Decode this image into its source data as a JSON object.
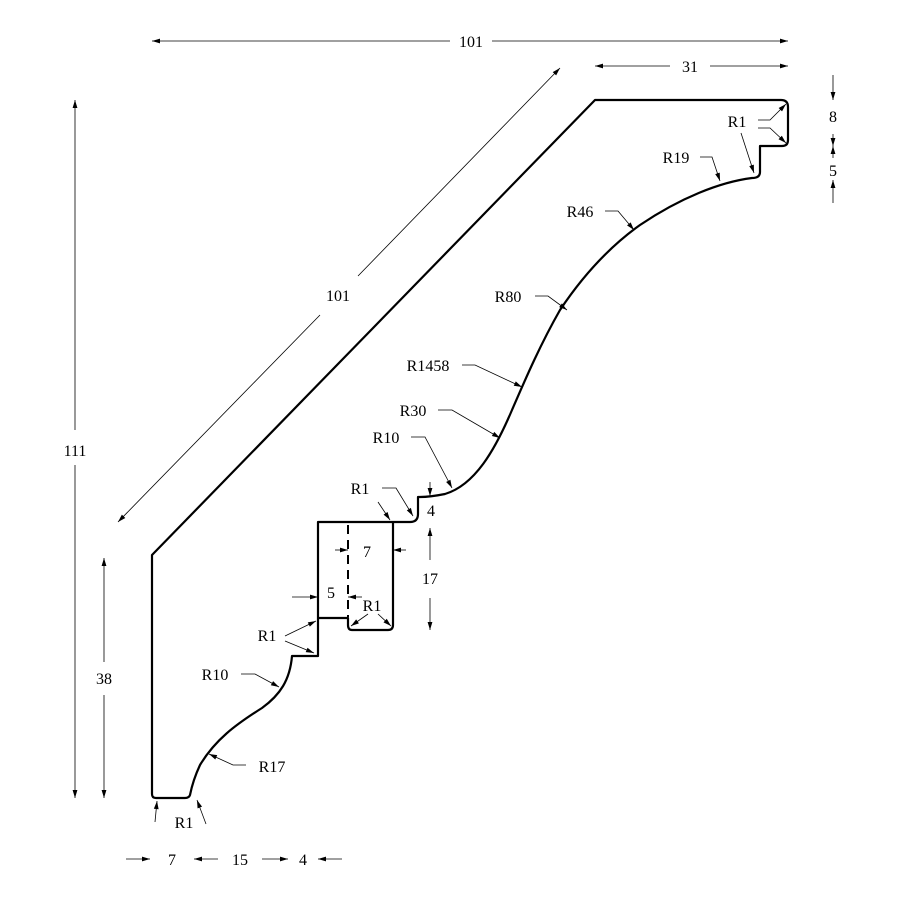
{
  "dimensions": {
    "overall_width": "101",
    "top_flat": "31",
    "top_step_height": "8",
    "top_step_depth": "5",
    "overall_height": "111",
    "wall_height": "38",
    "slope_length": "101",
    "step_height": "4",
    "slot_height": "17",
    "slot_width": "7",
    "slot_offset": "5",
    "bottom_flat": "7",
    "bottom_curve": "15",
    "bottom_step": "4"
  },
  "radii": {
    "top_corner": "R1",
    "r19": "R19",
    "r46": "R46",
    "r80": "R80",
    "r1458": "R1458",
    "r30": "R30",
    "r10_upper": "R10",
    "step_corner": "R1",
    "slot_corner": "R1",
    "lower_step_corner": "R1",
    "r10_lower": "R10",
    "r17": "R17",
    "bottom_corner": "R1"
  }
}
